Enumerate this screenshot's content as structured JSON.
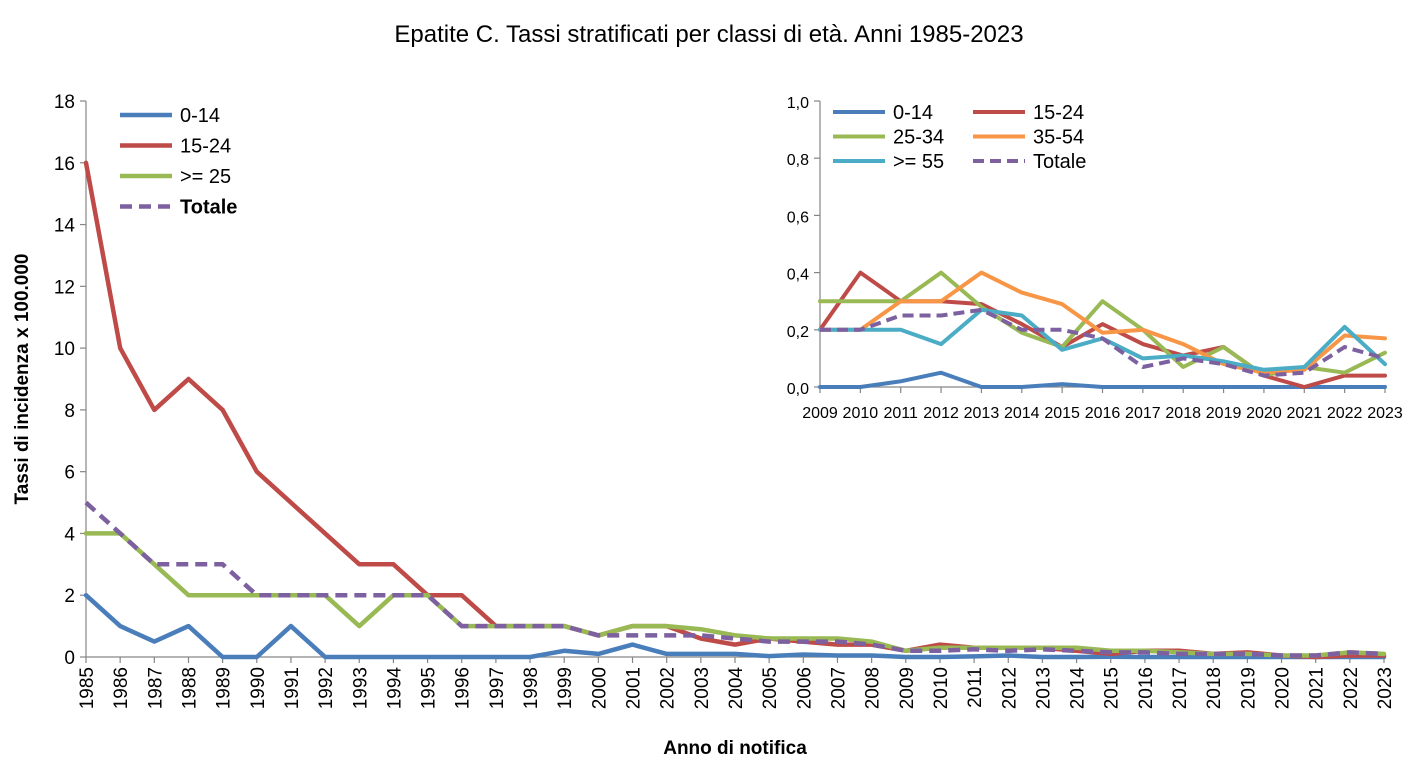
{
  "title": "Epatite C. Tassi stratificati per classi di età. Anni 1985-2023",
  "colors": {
    "0-14": "#4a7ebb",
    "15-24": "#be4b48",
    ">= 25": "#98b954",
    "25-34": "#98b954",
    "35-54": "#f79646",
    ">= 55": "#4bacc6",
    "Totale": "#7d60a0"
  },
  "chart_data": [
    {
      "type": "line",
      "title": "Epatite C. Tassi stratificati per classi di età. Anni 1985-2023",
      "xlabel": "Anno di notifica",
      "ylabel": "Tassi di incidenza x 100.000",
      "ylim": [
        0,
        18
      ],
      "yticks": [
        "0",
        "2",
        "4",
        "6",
        "8",
        "10",
        "12",
        "14",
        "16",
        "18"
      ],
      "ytick_values": [
        0,
        2,
        4,
        6,
        8,
        10,
        12,
        14,
        16,
        18
      ],
      "grid": false,
      "legend": "top-left",
      "x": [
        "1985",
        "1986",
        "1987",
        "1988",
        "1989",
        "1990",
        "1991",
        "1992",
        "1993",
        "1994",
        "1995",
        "1996",
        "1997",
        "1998",
        "1999",
        "2000",
        "2001",
        "2002",
        "2003",
        "2004",
        "2005",
        "2006",
        "2007",
        "2008",
        "2009",
        "2010",
        "2011",
        "2012",
        "2013",
        "2014",
        "2015",
        "2016",
        "2017",
        "2018",
        "2019",
        "2020",
        "2021",
        "2022",
        "2023"
      ],
      "series": [
        {
          "name": "0-14",
          "dashed": false,
          "values": [
            2,
            1,
            0.5,
            1,
            0,
            0,
            1,
            0,
            0,
            0,
            0,
            0,
            0,
            0,
            0.2,
            0.1,
            0.4,
            0.1,
            0.1,
            0.1,
            0.03,
            0.08,
            0.05,
            0.05,
            0,
            0,
            0.02,
            0.05,
            0,
            0,
            0.01,
            0,
            0,
            0,
            0,
            0,
            0,
            0,
            0
          ]
        },
        {
          "name": "15-24",
          "dashed": false,
          "values": [
            16,
            10,
            8,
            9,
            8,
            6,
            5,
            4,
            3,
            3,
            2,
            2,
            1,
            1,
            1,
            0.7,
            1,
            1,
            0.6,
            0.4,
            0.6,
            0.5,
            0.4,
            0.4,
            0.2,
            0.4,
            0.3,
            0.3,
            0.3,
            0.2,
            0.1,
            0.2,
            0.2,
            0.1,
            0.15,
            0.05,
            0,
            0.05,
            0.05
          ]
        },
        {
          "name": ">= 25",
          "dashed": false,
          "values": [
            4,
            4,
            3,
            2,
            2,
            2,
            2,
            2,
            1,
            2,
            2,
            1,
            1,
            1,
            1,
            0.7,
            1,
            1,
            0.9,
            0.7,
            0.6,
            0.6,
            0.6,
            0.5,
            0.2,
            0.3,
            0.3,
            0.3,
            0.3,
            0.3,
            0.2,
            0.2,
            0.15,
            0.1,
            0.1,
            0.05,
            0.05,
            0.15,
            0.1
          ]
        },
        {
          "name": "Totale",
          "dashed": true,
          "bold": true,
          "values": [
            5,
            4,
            3,
            3,
            3,
            2,
            2,
            2,
            2,
            2,
            2,
            1,
            1,
            1,
            1,
            0.7,
            0.7,
            0.7,
            0.7,
            0.6,
            0.5,
            0.5,
            0.5,
            0.4,
            0.2,
            0.2,
            0.25,
            0.2,
            0.25,
            0.2,
            0.15,
            0.15,
            0.1,
            0.1,
            0.1,
            0.05,
            0.05,
            0.15,
            0.1
          ]
        }
      ]
    },
    {
      "type": "line",
      "title": "",
      "xlabel": "",
      "ylabel": "",
      "ylim": [
        0,
        1
      ],
      "yticks": [
        "0,0",
        "0,2",
        "0,4",
        "0,6",
        "0,8",
        "1,0"
      ],
      "ytick_values": [
        0,
        0.2,
        0.4,
        0.6,
        0.8,
        1.0
      ],
      "grid": false,
      "legend": "top",
      "x": [
        "2009",
        "2010",
        "2011",
        "2012",
        "2013",
        "2014",
        "2015",
        "2016",
        "2017",
        "2018",
        "2019",
        "2020",
        "2021",
        "2022",
        "2023"
      ],
      "series": [
        {
          "name": "0-14",
          "dashed": false,
          "values": [
            0,
            0,
            0.02,
            0.05,
            0,
            0,
            0.01,
            0,
            0,
            0,
            0,
            0,
            0,
            0,
            0
          ]
        },
        {
          "name": "15-24",
          "dashed": false,
          "values": [
            0.2,
            0.4,
            0.3,
            0.3,
            0.29,
            0.22,
            0.14,
            0.22,
            0.15,
            0.11,
            0.14,
            0.04,
            0,
            0.04,
            0.04
          ]
        },
        {
          "name": "25-34",
          "dashed": false,
          "values": [
            0.3,
            0.3,
            0.3,
            0.4,
            0.28,
            0.19,
            0.14,
            0.3,
            0.2,
            0.07,
            0.14,
            0.04,
            0.07,
            0.05,
            0.12
          ]
        },
        {
          "name": "35-54",
          "dashed": false,
          "values": [
            0.2,
            0.2,
            0.3,
            0.3,
            0.4,
            0.33,
            0.29,
            0.19,
            0.2,
            0.15,
            0.08,
            0.05,
            0.06,
            0.18,
            0.17
          ]
        },
        {
          "name": ">= 55",
          "dashed": false,
          "values": [
            0.2,
            0.2,
            0.2,
            0.15,
            0.27,
            0.25,
            0.13,
            0.17,
            0.1,
            0.11,
            0.09,
            0.06,
            0.07,
            0.21,
            0.08
          ]
        },
        {
          "name": "Totale",
          "dashed": true,
          "values": [
            0.2,
            0.2,
            0.25,
            0.25,
            0.27,
            0.2,
            0.2,
            0.17,
            0.07,
            0.1,
            0.08,
            0.04,
            0.05,
            0.14,
            0.1
          ]
        }
      ]
    }
  ]
}
